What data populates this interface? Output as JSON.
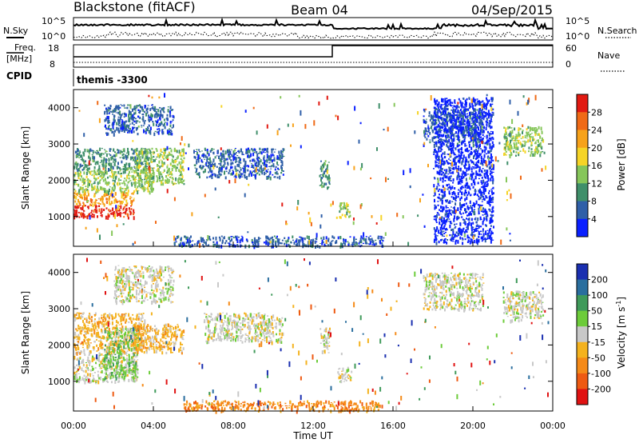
{
  "header": {
    "station": "Blackstone (fitACF)",
    "beam": "Beam 04",
    "date": "04/Sep/2015"
  },
  "top_panels": {
    "nsky_label": "N.Sky",
    "nsearch_label": "N.Search",
    "noise_ticks": [
      "10^5",
      "10^0"
    ],
    "freq_label_1": "Freq.",
    "freq_label_2": "[MHz]",
    "freq_ticks": [
      "18",
      "8"
    ],
    "nave_label": "Nave",
    "nave_ticks": [
      "60",
      "0"
    ],
    "cpid_label": "CPID",
    "cpid_value": "themis -3300"
  },
  "chart_data": [
    {
      "type": "heatmap",
      "name": "power",
      "ylabel": "Slant Range [km]",
      "yticks": [
        "1000",
        "2000",
        "3000",
        "4000"
      ],
      "ylim": [
        180,
        4500
      ],
      "xlim_hours": [
        0,
        24
      ],
      "colorbar_label": "Power [dB]",
      "colorbar_ticks": [
        "4",
        "8",
        "12",
        "16",
        "20",
        "24",
        "28"
      ],
      "colors": [
        "#0a20ff",
        "#2f5fa8",
        "#3f8f6a",
        "#86c65a",
        "#f6d426",
        "#f7a21a",
        "#f06a16",
        "#e21a12"
      ],
      "regions": [
        {
          "t": [
            0.0,
            3.0
          ],
          "r": [
            1000,
            1350
          ],
          "level": 7
        },
        {
          "t": [
            0.0,
            3.0
          ],
          "r": [
            1350,
            1700
          ],
          "level": 5
        },
        {
          "t": [
            0.0,
            4.0
          ],
          "r": [
            1700,
            2300
          ],
          "level": 3
        },
        {
          "t": [
            0.0,
            3.8
          ],
          "r": [
            2300,
            2900
          ],
          "level": 2
        },
        {
          "t": [
            3.0,
            5.5
          ],
          "r": [
            1900,
            2900
          ],
          "level": 3
        },
        {
          "t": [
            1.5,
            5.0
          ],
          "r": [
            3300,
            4100
          ],
          "level": 1
        },
        {
          "t": [
            6.0,
            10.5
          ],
          "r": [
            2100,
            2900
          ],
          "level": 1
        },
        {
          "t": [
            12.3,
            12.8
          ],
          "r": [
            1800,
            2600
          ],
          "level": 2
        },
        {
          "t": [
            13.3,
            13.9
          ],
          "r": [
            1000,
            1400
          ],
          "level": 3
        },
        {
          "t": [
            17.5,
            20.5
          ],
          "r": [
            3000,
            4000
          ],
          "level": 1
        },
        {
          "t": [
            21.5,
            23.5
          ],
          "r": [
            2700,
            3500
          ],
          "level": 3
        },
        {
          "t": [
            5.0,
            15.5
          ],
          "r": [
            200,
            480
          ],
          "level": 1
        },
        {
          "t": [
            18.0,
            21.0
          ],
          "r": [
            300,
            4300
          ],
          "level": 0
        }
      ]
    },
    {
      "type": "heatmap",
      "name": "velocity",
      "ylabel": "Slant Range [km]",
      "yticks": [
        "1000",
        "2000",
        "3000",
        "4000"
      ],
      "ylim": [
        180,
        4500
      ],
      "xlim_hours": [
        0,
        24
      ],
      "xticks": [
        "00:00",
        "04:00",
        "08:00",
        "12:00",
        "16:00",
        "20:00",
        "00:00"
      ],
      "xlabel": "Time UT",
      "colorbar_label": "Velocity [m s",
      "colorbar_sup": "-1",
      "colorbar_close": "]",
      "colorbar_ticks": [
        "200",
        "100",
        "50",
        "15",
        "-15",
        "-50",
        "-100",
        "-200"
      ],
      "colors": [
        "#1a2fb0",
        "#2a6e9e",
        "#3f9a5a",
        "#6dcc3a",
        "#c8c8c8",
        "#f4b21e",
        "#f58a18",
        "#ee5a12",
        "#e01212"
      ],
      "regions": [
        {
          "t": [
            0.0,
            3.2
          ],
          "r": [
            1000,
            1800
          ],
          "level": 4
        },
        {
          "t": [
            0.0,
            3.5
          ],
          "r": [
            1800,
            2900
          ],
          "level": 5
        },
        {
          "t": [
            1.5,
            3.2
          ],
          "r": [
            1100,
            2500
          ],
          "level": 3
        },
        {
          "t": [
            3.0,
            5.5
          ],
          "r": [
            1800,
            2600
          ],
          "level": 5
        },
        {
          "t": [
            2.0,
            5.0
          ],
          "r": [
            3200,
            4200
          ],
          "level": 4
        },
        {
          "t": [
            6.5,
            10.5
          ],
          "r": [
            2100,
            2900
          ],
          "level": 4
        },
        {
          "t": [
            12.3,
            12.8
          ],
          "r": [
            1800,
            2500
          ],
          "level": 4
        },
        {
          "t": [
            13.2,
            13.9
          ],
          "r": [
            1000,
            1400
          ],
          "level": 4
        },
        {
          "t": [
            17.5,
            20.5
          ],
          "r": [
            3000,
            4000
          ],
          "level": 4
        },
        {
          "t": [
            21.5,
            23.5
          ],
          "r": [
            2700,
            3500
          ],
          "level": 4
        },
        {
          "t": [
            5.5,
            15.5
          ],
          "r": [
            200,
            480
          ],
          "level": 6
        }
      ]
    }
  ]
}
